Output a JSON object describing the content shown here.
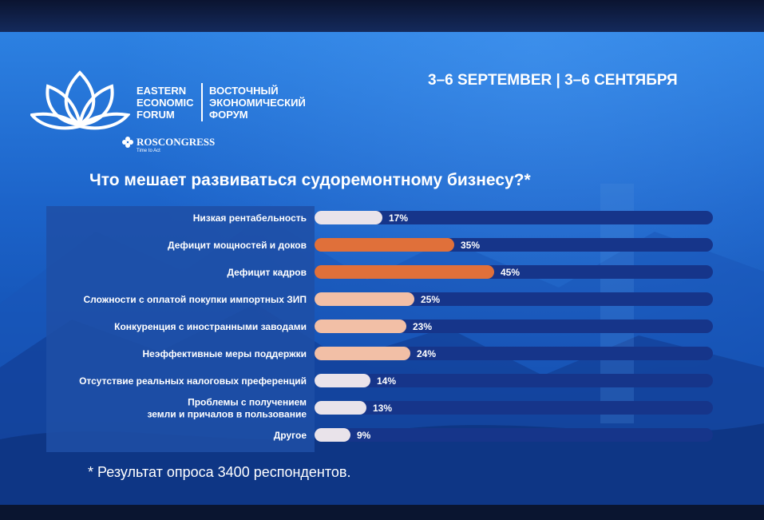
{
  "header": {
    "logo_en": [
      "EASTERN",
      "ECONOMIC",
      "FORUM"
    ],
    "logo_ru": [
      "ВОСТОЧНЫЙ",
      "ЭКОНОМИЧЕСКИЙ",
      "ФОРУМ"
    ],
    "roscongress": "ROSCONGRESS",
    "tagline": "Time to Act",
    "dates": "3–6 SEPTEMBER | 3–6 СЕНТЯБРЯ"
  },
  "footnote": "* Результат опроса 3400 респондентов.",
  "colors": {
    "background": "#1c63c9",
    "track": "#16358a",
    "label_panel": "#1f4fa6",
    "bar_high": "#e0703a",
    "bar_mid": "#f2bfa6",
    "bar_low": "#e9e3ea"
  },
  "chart_data": {
    "type": "bar",
    "orientation": "horizontal",
    "title": "Что мешает развиваться судоремонтному бизнесу?*",
    "categories": [
      [
        "Низкая рентабельность"
      ],
      [
        "Дефицит мощностей и доков"
      ],
      [
        "Дефицит кадров"
      ],
      [
        "Сложности с оплатой покупки импортных ЗИП"
      ],
      [
        "Конкуренция с иностранными заводами"
      ],
      [
        "Неэффективные меры поддержки"
      ],
      [
        "Отсутствие реальных налоговых преференций"
      ],
      [
        "Проблемы с получением",
        "земли и причалов в пользование"
      ],
      [
        "Другое"
      ]
    ],
    "values": [
      17,
      35,
      45,
      25,
      23,
      24,
      14,
      13,
      9
    ],
    "value_labels": [
      "17%",
      "35%",
      "45%",
      "25%",
      "23%",
      "24%",
      "14%",
      "13%",
      "9%"
    ],
    "unit": "%",
    "xlim": [
      0,
      100
    ],
    "grid": false,
    "legend": "none"
  }
}
